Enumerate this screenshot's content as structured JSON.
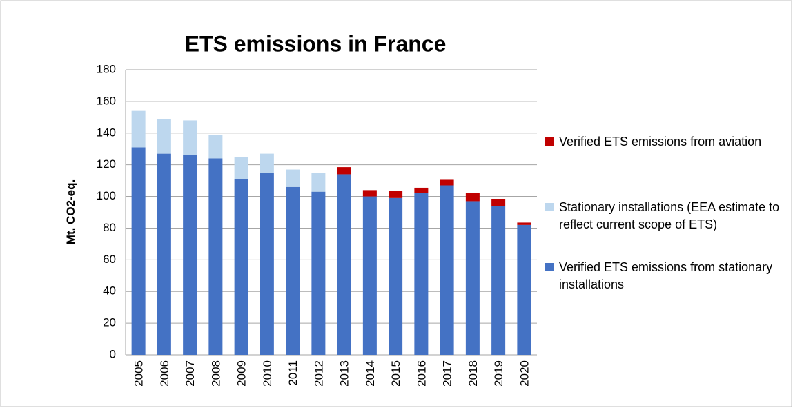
{
  "chart_data": {
    "type": "bar",
    "stacked": true,
    "title": "ETS emissions in France",
    "y_label": "Mt. CO2-eq.",
    "categories": [
      "2005",
      "2006",
      "2007",
      "2008",
      "2009",
      "2010",
      "2011",
      "2012",
      "2013",
      "2014",
      "2015",
      "2016",
      "2017",
      "2018",
      "2019",
      "2020"
    ],
    "series": [
      {
        "name": "Verified ETS emissions from stationary installations",
        "color": "#4472c4",
        "values": [
          131,
          127,
          126,
          124,
          111,
          115,
          106,
          103,
          114,
          100,
          99,
          102,
          107,
          97,
          94,
          82
        ]
      },
      {
        "name": "Stationary installations (EEA estimate to reflect current scope of ETS)",
        "color": "#bdd7ee",
        "values": [
          23,
          22,
          22,
          15,
          14,
          12,
          11,
          12,
          null,
          null,
          null,
          null,
          null,
          null,
          null,
          null
        ]
      },
      {
        "name": "Verified ETS emissions from aviation",
        "color": "#c00000",
        "values": [
          null,
          null,
          null,
          null,
          null,
          null,
          null,
          null,
          4.5,
          4,
          4.5,
          3.5,
          3.5,
          5,
          4.5,
          1.5
        ]
      }
    ],
    "ylim": [
      0,
      180
    ],
    "yticks": [
      0,
      20,
      40,
      60,
      80,
      100,
      120,
      140,
      160,
      180
    ],
    "grid": true,
    "legend": "right"
  }
}
